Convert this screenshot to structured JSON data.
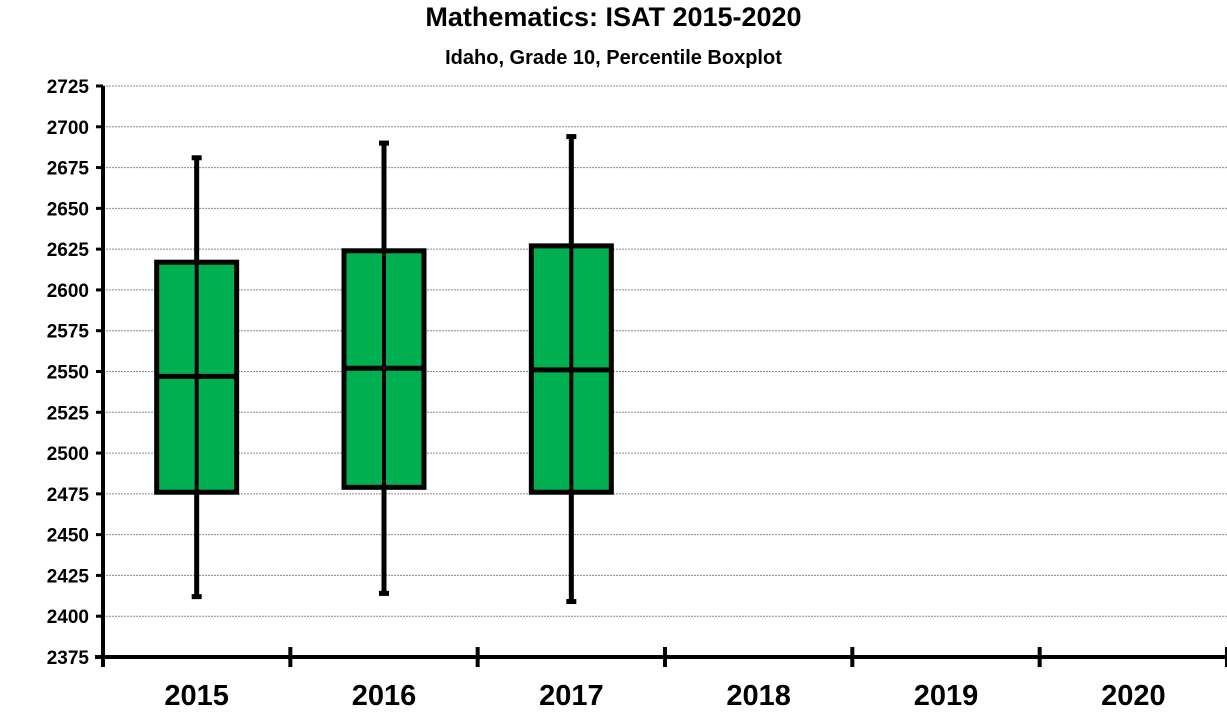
{
  "chart_data": {
    "type": "box",
    "title": "Mathematics:   ISAT 2015-2020",
    "subtitle": "Idaho, Grade 10, Percentile Boxplot",
    "xlabel": "",
    "ylabel": "",
    "categories": [
      "2015",
      "2016",
      "2017",
      "2018",
      "2019",
      "2020"
    ],
    "ylim": [
      2375,
      2725
    ],
    "yticks": [
      2375,
      2400,
      2425,
      2450,
      2475,
      2500,
      2525,
      2550,
      2575,
      2600,
      2625,
      2650,
      2675,
      2700,
      2725
    ],
    "grid": true,
    "series": [
      {
        "boxes": [
          {
            "category": "2015",
            "min": 2412,
            "q1": 2476,
            "median": 2547,
            "q3": 2617,
            "max": 2681
          },
          {
            "category": "2016",
            "min": 2414,
            "q1": 2479,
            "median": 2552,
            "q3": 2624,
            "max": 2690
          },
          {
            "category": "2017",
            "min": 2409,
            "q1": 2476,
            "median": 2551,
            "q3": 2627,
            "max": 2694
          }
        ]
      }
    ],
    "colors": {
      "box_fill": "#00b050",
      "stroke": "#000000",
      "grid": "#8c8c8c"
    }
  }
}
